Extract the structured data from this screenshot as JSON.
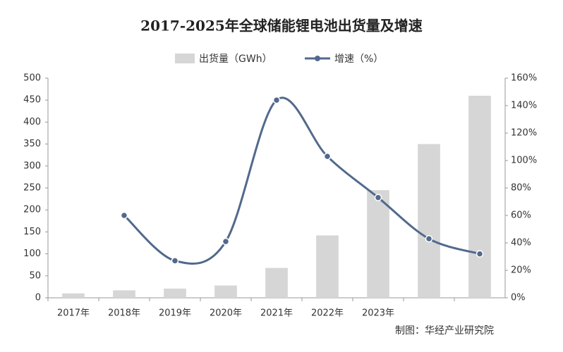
{
  "chart_data": {
    "type": "bar-line",
    "title": "2017-2025年全球储能锂电池出货量及增速",
    "categories": [
      "2017年",
      "2018年",
      "2019年",
      "2020年",
      "2021年",
      "2022年",
      "2023年",
      null,
      null
    ],
    "series": [
      {
        "name": "出货量（GWh）",
        "type": "bar",
        "color": "#d6d6d6",
        "values": [
          10,
          17,
          21,
          28,
          68,
          142,
          245,
          350,
          460
        ]
      },
      {
        "name": "增速（%）",
        "type": "line",
        "axis": "y2",
        "color": "#52698c",
        "values": [
          null,
          60,
          27,
          41,
          144,
          103,
          73,
          43,
          32
        ]
      }
    ],
    "ylim": [
      0,
      500
    ],
    "yticks": [
      0,
      50,
      100,
      150,
      200,
      250,
      300,
      350,
      400,
      450,
      500
    ],
    "y2lim": [
      0,
      160
    ],
    "y2ticks": [
      {
        "value": 0,
        "label": "0%"
      },
      {
        "value": 20,
        "label": "20%"
      },
      {
        "value": 40,
        "label": "40%"
      },
      {
        "value": 60,
        "label": "60%"
      },
      {
        "value": 80,
        "label": "80%"
      },
      {
        "value": 100,
        "label": "100%"
      },
      {
        "value": 120,
        "label": "120%"
      },
      {
        "value": 140,
        "label": "140%"
      },
      {
        "value": 160,
        "label": "160%"
      }
    ],
    "source": "制图：华经产业研究院"
  }
}
